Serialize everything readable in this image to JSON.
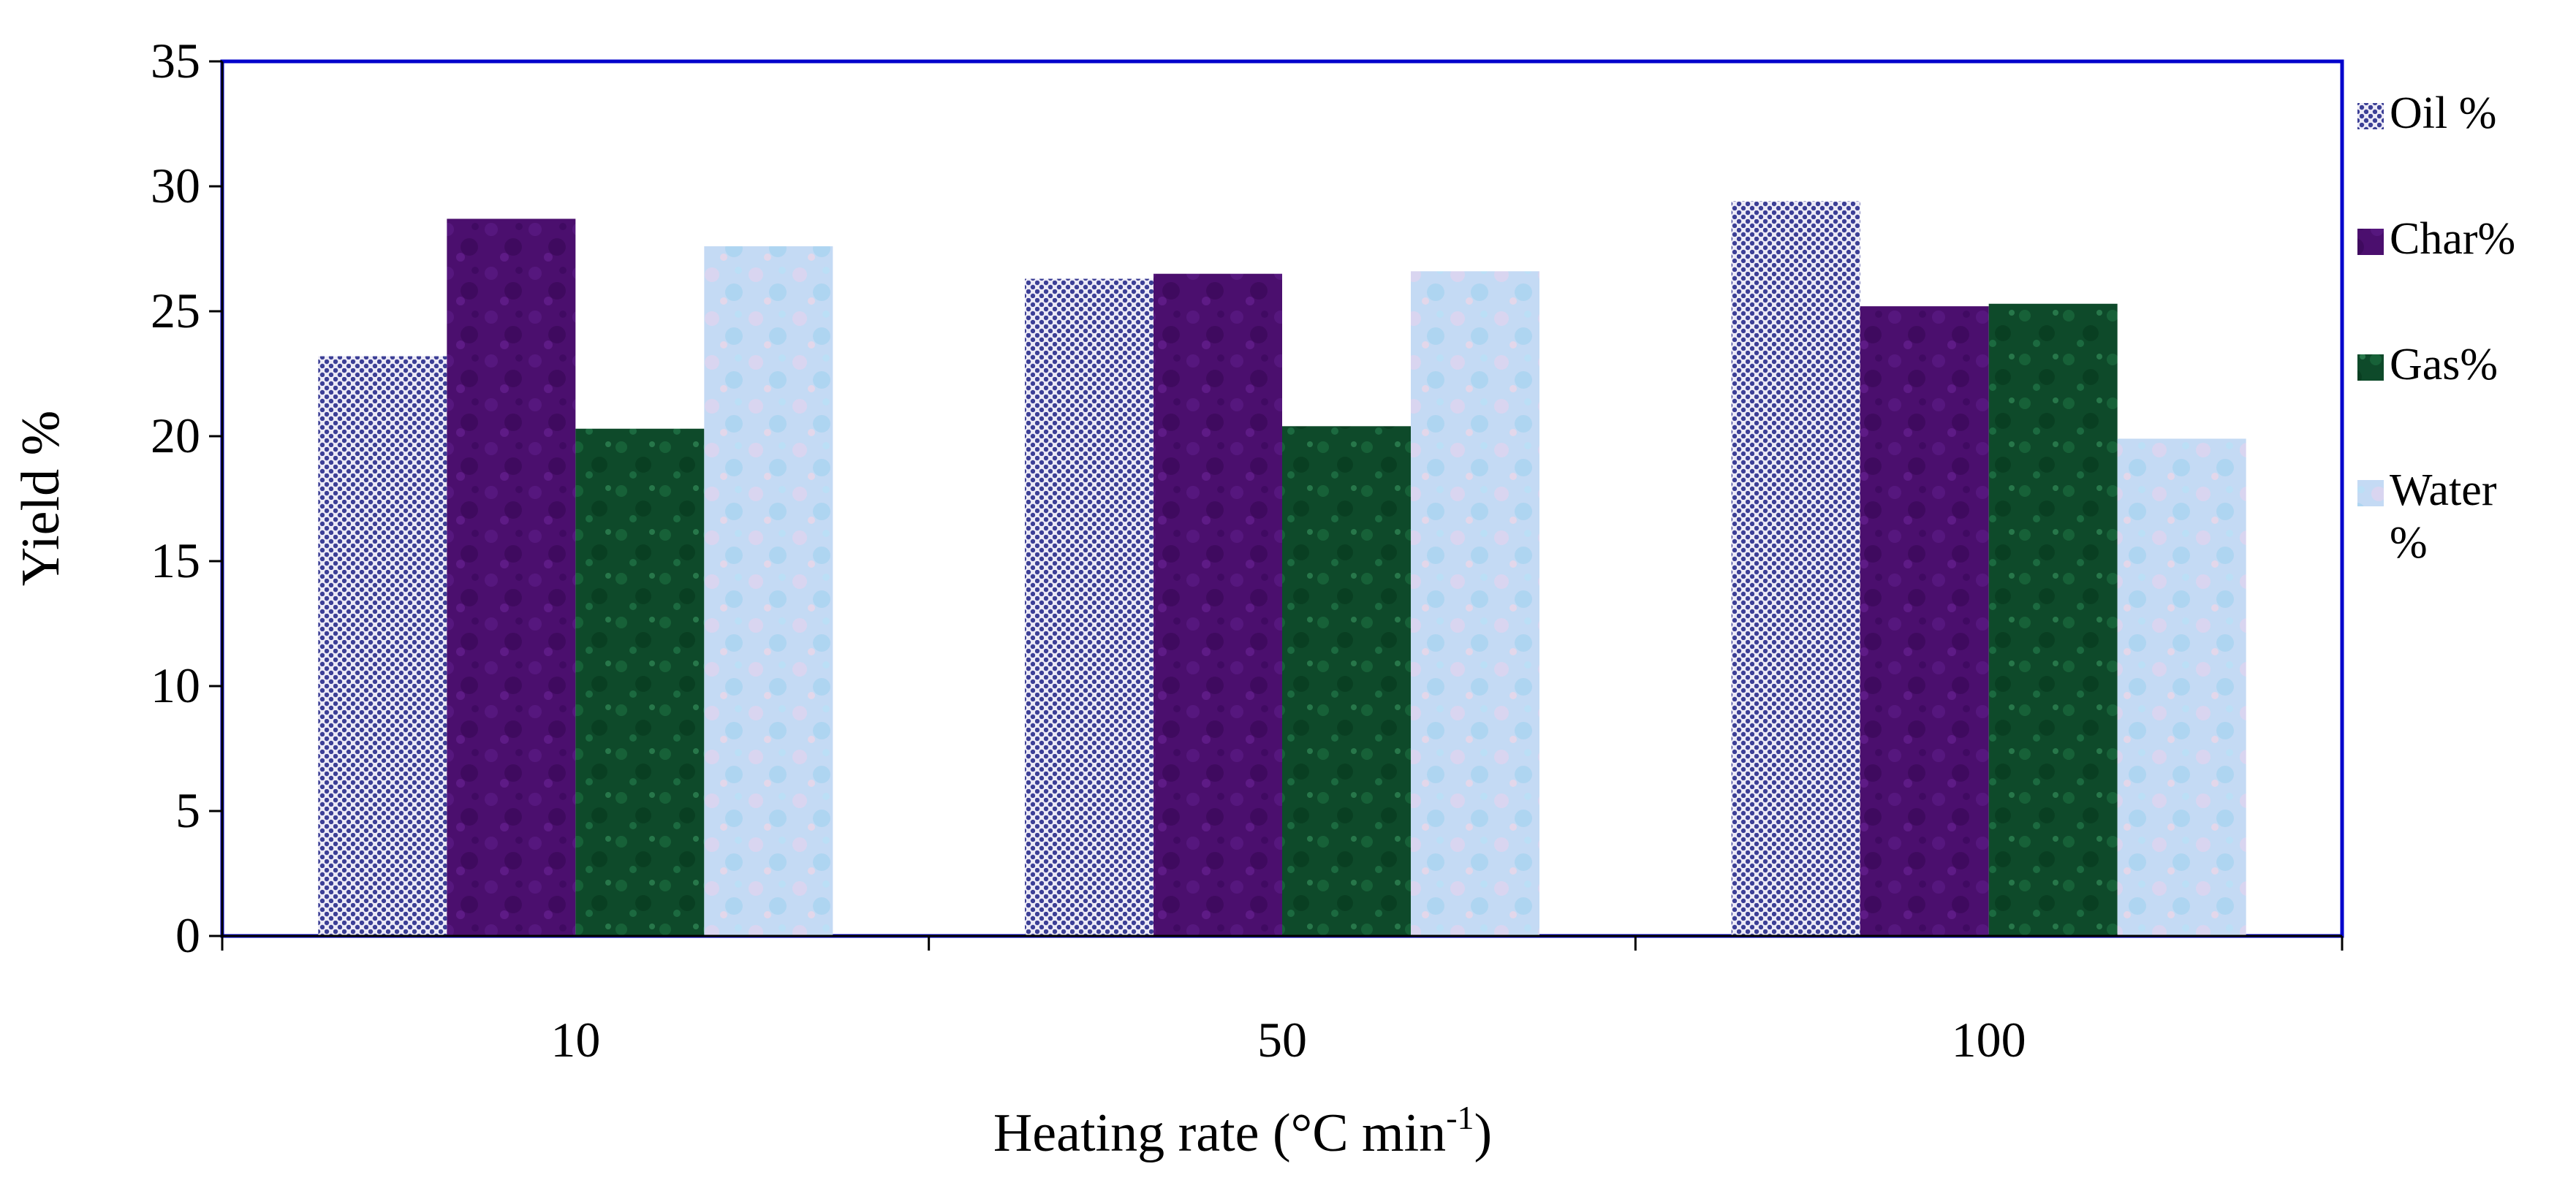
{
  "chart_data": {
    "type": "bar",
    "title": "",
    "xlabel": "Heating rate (°C min",
    "xlabel_superscript": "-1",
    "xlabel_suffix": ")",
    "ylabel": "Yield %",
    "ylim": [
      0,
      35
    ],
    "yticks": [
      0,
      5,
      10,
      15,
      20,
      25,
      30,
      35
    ],
    "categories": [
      "10",
      "50",
      "100"
    ],
    "series": [
      {
        "name": "Oil %",
        "legend_lines": [
          "Oil %"
        ],
        "values": [
          23.2,
          26.3,
          29.4
        ],
        "color": "#3c3f96",
        "pattern": "dots"
      },
      {
        "name": "Char%",
        "legend_lines": [
          "Char%"
        ],
        "values": [
          28.7,
          26.5,
          25.2
        ],
        "color": "#4b0f6e",
        "pattern": "texture"
      },
      {
        "name": "Gas%",
        "legend_lines": [
          "Gas%"
        ],
        "values": [
          20.3,
          20.4,
          25.3
        ],
        "color": "#0e4a2a",
        "pattern": "texture"
      },
      {
        "name": "Water %",
        "legend_lines": [
          "Water",
          "%"
        ],
        "values": [
          27.6,
          26.6,
          19.9
        ],
        "color": "#c4daf4",
        "pattern": "texture"
      }
    ],
    "legend_position": "right",
    "plot_border_color": "#0000cc"
  }
}
